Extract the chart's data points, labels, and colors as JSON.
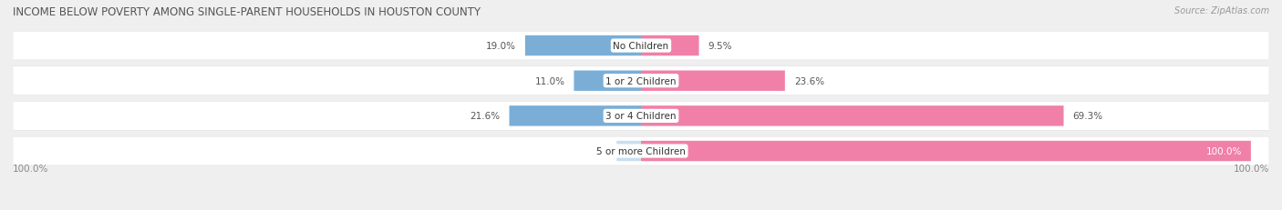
{
  "title": "INCOME BELOW POVERTY AMONG SINGLE-PARENT HOUSEHOLDS IN HOUSTON COUNTY",
  "source": "Source: ZipAtlas.com",
  "categories": [
    "No Children",
    "1 or 2 Children",
    "3 or 4 Children",
    "5 or more Children"
  ],
  "single_father": [
    19.0,
    11.0,
    21.6,
    0.0
  ],
  "single_mother": [
    9.5,
    23.6,
    69.3,
    100.0
  ],
  "color_father": "#7aaed6",
  "color_mother": "#f080a8",
  "color_father_faint": "#c8dff0",
  "bg_color": "#efefef",
  "row_bg_color": "#ffffff",
  "axis_label_left": "100.0%",
  "axis_label_right": "100.0%",
  "max_val": 100.0,
  "title_fontsize": 8.5,
  "label_fontsize": 7.5,
  "source_fontsize": 7.0,
  "legend_fontsize": 7.5
}
